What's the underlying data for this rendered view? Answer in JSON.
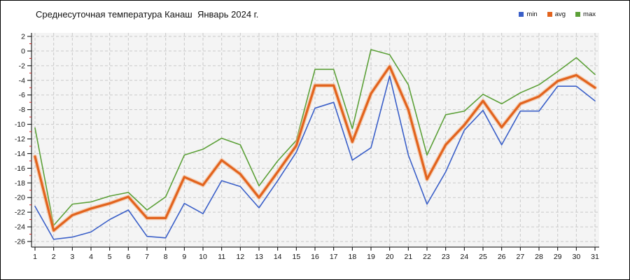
{
  "title": "Среднесуточная температура Канаш  Январь 2024 г.",
  "legend": [
    {
      "label": "min",
      "color": "#3a5fc8"
    },
    {
      "label": "avg",
      "color": "#e2631d"
    },
    {
      "label": "max",
      "color": "#5ca038"
    }
  ],
  "chart_data": {
    "type": "line",
    "title": "Среднесуточная температура Канаш  Январь 2024 г.",
    "xlabel": "",
    "ylabel": "",
    "x": [
      1,
      2,
      3,
      4,
      5,
      6,
      7,
      8,
      9,
      10,
      11,
      12,
      13,
      14,
      15,
      16,
      17,
      18,
      19,
      20,
      21,
      22,
      23,
      24,
      25,
      26,
      27,
      28,
      29,
      30,
      31
    ],
    "series": [
      {
        "name": "min",
        "color": "#3a5fc8",
        "width": 1.6,
        "values": [
          -21.2,
          -25.7,
          -25.4,
          -24.7,
          -23.0,
          -21.7,
          -25.3,
          -25.5,
          -20.8,
          -22.2,
          -17.7,
          -18.5,
          -21.4,
          -17.7,
          -13.8,
          -7.8,
          -7.0,
          -14.9,
          -13.2,
          -3.4,
          -14.2,
          -20.9,
          -16.5,
          -10.8,
          -8.1,
          -12.8,
          -8.2,
          -8.2,
          -4.8,
          -4.8,
          -6.8
        ]
      },
      {
        "name": "avg",
        "color": "#e2631d",
        "width": 3.2,
        "halo_color": "#f4b183",
        "values": [
          -14.4,
          -24.5,
          -22.4,
          -21.5,
          -20.8,
          -19.9,
          -22.8,
          -22.8,
          -17.2,
          -18.3,
          -14.9,
          -16.8,
          -20.0,
          -16.5,
          -12.9,
          -4.7,
          -4.7,
          -12.4,
          -5.8,
          -2.1,
          -8.0,
          -17.5,
          -12.8,
          -10.1,
          -6.8,
          -10.4,
          -7.2,
          -6.2,
          -4.1,
          -3.3,
          -5.0
        ]
      },
      {
        "name": "max",
        "color": "#5ca038",
        "width": 1.6,
        "values": [
          -10.5,
          -23.8,
          -20.9,
          -20.6,
          -19.8,
          -19.3,
          -21.7,
          -19.9,
          -14.2,
          -13.4,
          -11.9,
          -12.8,
          -18.4,
          -15.0,
          -12.2,
          -2.5,
          -2.5,
          -10.6,
          0.2,
          -0.5,
          -4.6,
          -14.2,
          -8.7,
          -8.2,
          -5.9,
          -7.2,
          -5.7,
          -4.6,
          -2.8,
          -0.9,
          -3.2
        ]
      }
    ],
    "ylim": [
      -26,
      2
    ],
    "ytick_step": 2,
    "yticks": [
      2,
      0,
      -2,
      -4,
      -6,
      -8,
      -10,
      -12,
      -14,
      -16,
      -18,
      -20,
      -22,
      -24,
      -26
    ],
    "grid": "dashed",
    "legend_position": "top-right",
    "plot_bg": "#f4f4f4",
    "grid_color": "#c9c9c9",
    "axis_color": "#000000",
    "minor_tick_color": "#cc2222"
  }
}
